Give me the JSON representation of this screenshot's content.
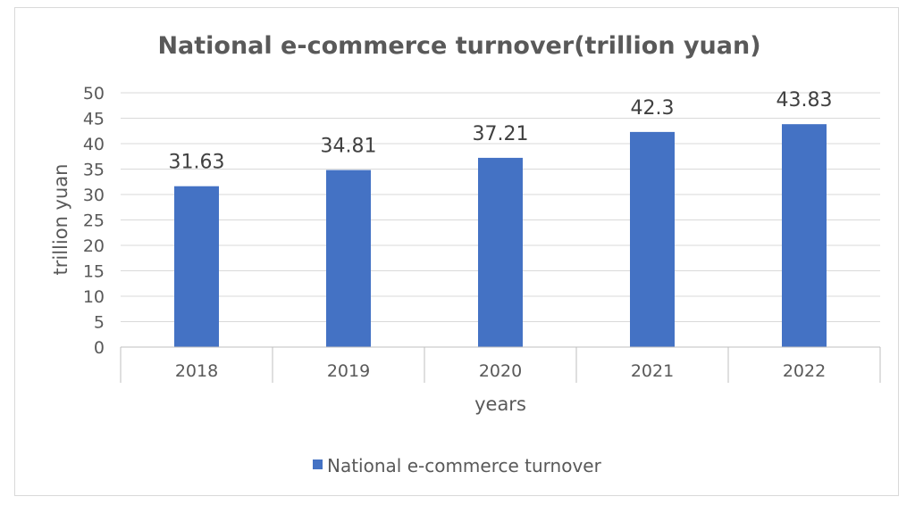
{
  "chart_data": {
    "type": "bar",
    "title": "National e-commerce turnover(trillion yuan)",
    "xlabel": "years",
    "ylabel": "trillion yuan",
    "categories": [
      "2018",
      "2019",
      "2020",
      "2021",
      "2022"
    ],
    "series": [
      {
        "name": "National e-commerce turnover",
        "values": [
          31.63,
          34.81,
          37.21,
          42.3,
          43.83
        ],
        "labels": [
          "31.63",
          "34.81",
          "37.21",
          "42.3",
          "43.83"
        ],
        "color": "#4472c4"
      }
    ],
    "ylim": [
      0,
      50
    ],
    "yticks": [
      "0",
      "5",
      "10",
      "15",
      "20",
      "25",
      "30",
      "35",
      "40",
      "45",
      "50"
    ],
    "grid": true,
    "legend": "bottom"
  }
}
